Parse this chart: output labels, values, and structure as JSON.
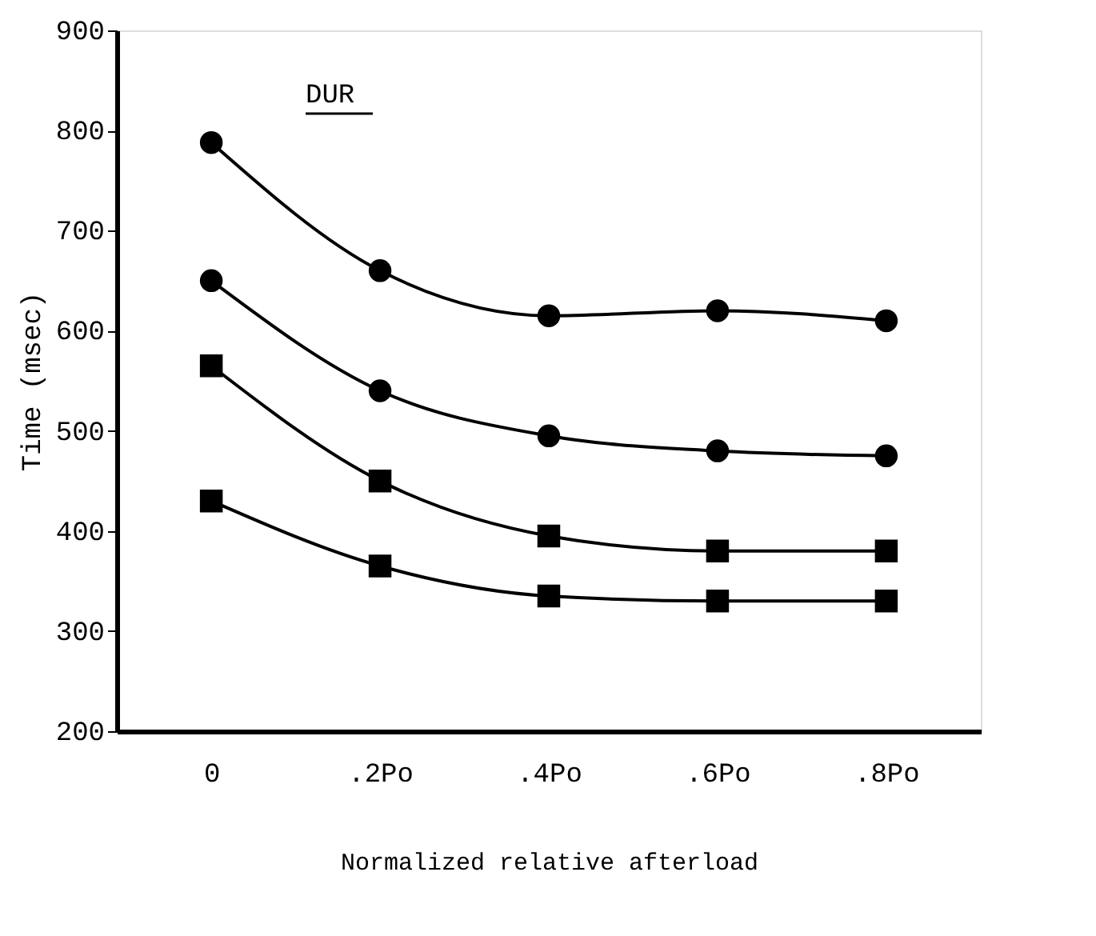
{
  "chart_data": {
    "type": "line",
    "xlabel": "Normalized relative afterload",
    "ylabel": "Time (msec)",
    "annotations": [
      "DUR"
    ],
    "categories": [
      "0",
      ".2Po",
      ".4Po",
      ".6Po",
      ".8Po"
    ],
    "series": [
      {
        "color": "#000000",
        "marker": "circle",
        "values": [
          788,
          660,
          615,
          620,
          610
        ]
      },
      {
        "color": "#000000",
        "marker": "circle",
        "values": [
          650,
          540,
          495,
          480,
          475
        ]
      },
      {
        "color": "#000000",
        "marker": "square",
        "values": [
          565,
          450,
          395,
          380,
          380
        ]
      },
      {
        "color": "#000000",
        "marker": "square",
        "values": [
          430,
          365,
          335,
          330,
          330
        ]
      }
    ],
    "ylim": [
      200,
      900
    ],
    "yticks": [
      200,
      300,
      400,
      500,
      600,
      700,
      800,
      900
    ],
    "grid": false,
    "line_style": "solid"
  }
}
